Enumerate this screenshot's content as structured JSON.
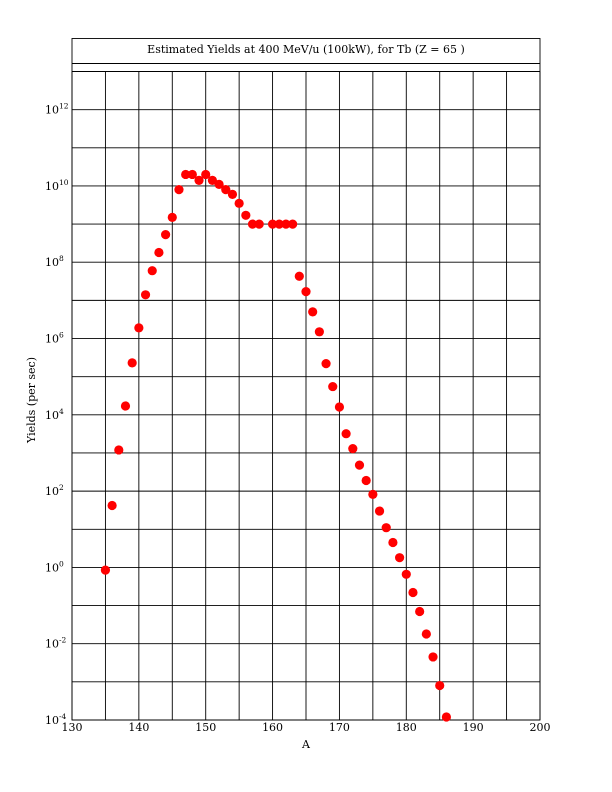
{
  "chart_data": {
    "type": "scatter",
    "title": "Estimated Yields at 400 MeV/u (100kW), for Tb (Z = 65 )",
    "xlabel": "A",
    "ylabel": "Yields (per sec)",
    "x_scale": "linear",
    "y_scale": "log",
    "xlim": [
      130,
      200
    ],
    "ylim": [
      0.0001,
      10000000000000.0
    ],
    "x_ticks": [
      130,
      140,
      150,
      160,
      170,
      180,
      190,
      200
    ],
    "x_tick_labels": [
      "130",
      "140",
      "150",
      "160",
      "170",
      "180",
      "190",
      "200"
    ],
    "x_grid": [
      130,
      135,
      140,
      145,
      150,
      155,
      160,
      165,
      170,
      175,
      180,
      185,
      190,
      195,
      200
    ],
    "y_ticks": [
      {
        "base": "10",
        "exp": "-4",
        "value": 0.0001
      },
      {
        "base": "10",
        "exp": "-2",
        "value": 0.01
      },
      {
        "base": "10",
        "exp": "0",
        "value": 1
      },
      {
        "base": "10",
        "exp": "2",
        "value": 100
      },
      {
        "base": "10",
        "exp": "4",
        "value": 10000
      },
      {
        "base": "10",
        "exp": "6",
        "value": 1000000
      },
      {
        "base": "10",
        "exp": "8",
        "value": 100000000
      },
      {
        "base": "10",
        "exp": "10",
        "value": 10000000000
      },
      {
        "base": "10",
        "exp": "12",
        "value": 1000000000000
      }
    ],
    "y_grid_exponents": [
      -4,
      -3,
      -2,
      -1,
      0,
      1,
      2,
      3,
      4,
      5,
      6,
      7,
      8,
      9,
      10,
      11,
      12,
      13
    ],
    "grid": true,
    "marker_color": "#ff0000",
    "series": [
      {
        "points": [
          [
            135,
            0.85
          ],
          [
            136,
            42
          ],
          [
            137,
            1200
          ],
          [
            138,
            17000
          ],
          [
            139,
            230000
          ],
          [
            140,
            1900000
          ],
          [
            141,
            14000000
          ],
          [
            142,
            60000000
          ],
          [
            143,
            180000000
          ],
          [
            144,
            530000000
          ],
          [
            145,
            1500000000
          ],
          [
            146,
            8000000000
          ],
          [
            147,
            20000000000
          ],
          [
            148,
            20000000000
          ],
          [
            149,
            14000000000
          ],
          [
            150,
            20000000000
          ],
          [
            151,
            14000000000
          ],
          [
            152,
            11000000000
          ],
          [
            153,
            8000000000
          ],
          [
            154,
            6000000000
          ],
          [
            155,
            3500000000
          ],
          [
            156,
            1700000000
          ],
          [
            157,
            1000000000
          ],
          [
            158,
            1000000000
          ],
          [
            160,
            1000000000
          ],
          [
            161,
            1000000000
          ],
          [
            162,
            1000000000
          ],
          [
            163,
            1000000000
          ],
          [
            164,
            43000000
          ],
          [
            165,
            17000000
          ],
          [
            166,
            5000000
          ],
          [
            167,
            1500000
          ],
          [
            168,
            220000
          ],
          [
            169,
            55000
          ],
          [
            170,
            16000
          ],
          [
            171,
            3200
          ],
          [
            172,
            1300
          ],
          [
            173,
            480
          ],
          [
            174,
            190
          ],
          [
            175,
            82
          ],
          [
            176,
            30
          ],
          [
            177,
            11
          ],
          [
            178,
            4.5
          ],
          [
            179,
            1.8
          ],
          [
            180,
            0.66
          ],
          [
            181,
            0.22
          ],
          [
            182,
            0.07
          ],
          [
            183,
            0.018
          ],
          [
            184,
            0.0045
          ],
          [
            185,
            0.0008
          ],
          [
            186,
            0.00012
          ]
        ]
      }
    ]
  }
}
